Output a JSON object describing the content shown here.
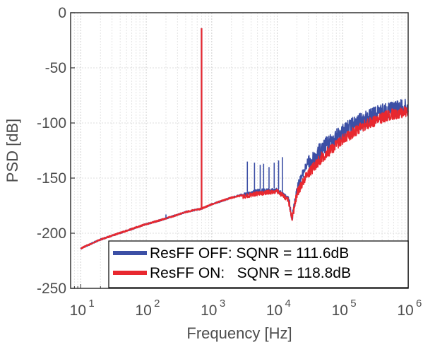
{
  "chart_data": {
    "type": "line",
    "title": "",
    "xlabel": "Frequency [Hz]",
    "ylabel": "PSD [dB]",
    "x_scale": "log",
    "xlim": [
      7,
      1000000
    ],
    "ylim": [
      -250,
      0
    ],
    "x_ticks": [
      {
        "base": "10",
        "exp": "1"
      },
      {
        "base": "10",
        "exp": "2"
      },
      {
        "base": "10",
        "exp": "3"
      },
      {
        "base": "10",
        "exp": "4"
      },
      {
        "base": "10",
        "exp": "5"
      },
      {
        "base": "10",
        "exp": "6"
      }
    ],
    "y_ticks": [
      "0",
      "-50",
      "-100",
      "-150",
      "-200",
      "-250"
    ],
    "grid": true,
    "legend_position": "bottom-right",
    "series": [
      {
        "name": "ResFF OFF: SQNR = 111.6dB",
        "color": "#3c4fa5",
        "x": [
          10,
          20,
          50,
          100,
          200,
          400,
          700,
          1000,
          2000,
          5000,
          10000,
          15000,
          17000,
          20000,
          30000,
          50000,
          100000,
          200000,
          500000,
          1000000
        ],
        "y": [
          -213,
          -205,
          -197,
          -191,
          -186,
          -180,
          -177,
          -173,
          -167,
          -160,
          -159,
          -167,
          -182,
          -155,
          -130,
          -115,
          -100,
          -90,
          -80,
          -78
        ]
      },
      {
        "name": "ResFF ON:   SQNR = 118.8dB",
        "color": "#e8282f",
        "x": [
          10,
          20,
          50,
          100,
          200,
          400,
          700,
          1000,
          2000,
          5000,
          10000,
          15000,
          17000,
          20000,
          30000,
          50000,
          100000,
          200000,
          500000,
          1000000
        ],
        "y": [
          -213,
          -205,
          -197,
          -191,
          -186,
          -180,
          -177,
          -173,
          -167,
          -162,
          -160,
          -168,
          -182,
          -160,
          -140,
          -125,
          -110,
          -98,
          -88,
          -84
        ]
      }
    ],
    "annotations": [
      {
        "type": "tone",
        "series": "both",
        "x": 700,
        "y": -14
      }
    ],
    "spurs": {
      "series": "ResFF OFF: SQNR = 111.6dB",
      "points": [
        {
          "x": 200,
          "y": -183
        },
        {
          "x": 3500,
          "y": -135
        },
        {
          "x": 4500,
          "y": -136
        },
        {
          "x": 5500,
          "y": -138
        },
        {
          "x": 6200,
          "y": -137
        },
        {
          "x": 7500,
          "y": -140
        },
        {
          "x": 9000,
          "y": -136
        },
        {
          "x": 10500,
          "y": -134
        },
        {
          "x": 12000,
          "y": -131
        }
      ]
    }
  }
}
